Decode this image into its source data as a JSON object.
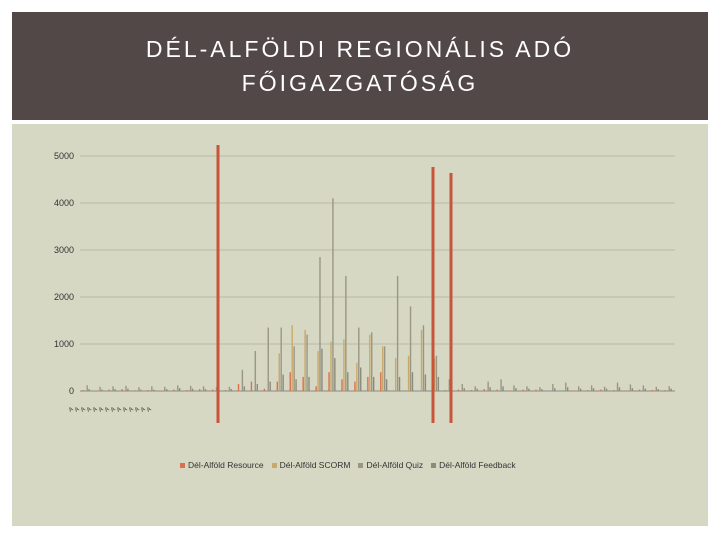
{
  "header": {
    "title_line1": "DÉL-ALFÖLDI REGIONÁLIS ADÓ",
    "title_line2": "FŐIGAZGATÓSÁG"
  },
  "colors": {
    "title_bg": "#524848",
    "panel_bg": "#d6d8c4",
    "marker": "#c8553a",
    "resource": "#d9714f",
    "scorm": "#c9a96a",
    "quiz": "#9a9685",
    "feedback": "#8c8a7a"
  },
  "chart_data": {
    "type": "bar",
    "title": "",
    "xlabel": "",
    "ylabel": "",
    "ylim": [
      0,
      5000
    ],
    "yticks": [
      0,
      1000,
      2000,
      3000,
      4000,
      5000
    ],
    "grid": true,
    "legend_position": "bottom",
    "legend": [
      "Dél-Alföld Resource",
      "Dél-Alföld SCORM",
      "Dél-Alföld Quiz",
      "Dél-Alföld Feedback"
    ],
    "series": [
      {
        "name": "Dél-Alföld Resource",
        "values": [
          20,
          10,
          30,
          40,
          15,
          20,
          10,
          30,
          20,
          40,
          30,
          20,
          150,
          200,
          50,
          200,
          400,
          300,
          100,
          400,
          250,
          200,
          300,
          400,
          0,
          0,
          0,
          0,
          20,
          30,
          20,
          40,
          30,
          10,
          30,
          30,
          0,
          0,
          10,
          20,
          30,
          20,
          10,
          30,
          20,
          20
        ]
      },
      {
        "name": "Dél-Alföld SCORM",
        "values": [
          0,
          0,
          0,
          0,
          0,
          0,
          0,
          0,
          0,
          0,
          0,
          0,
          0,
          0,
          0,
          800,
          1400,
          1300,
          850,
          1050,
          1100,
          600,
          1200,
          950,
          700,
          750,
          1300,
          700,
          0,
          0,
          0,
          0,
          0,
          0,
          0,
          0,
          0,
          0,
          0,
          0,
          0,
          0,
          0,
          0,
          0,
          0
        ]
      },
      {
        "name": "Dél-Alföld Quiz",
        "values": [
          120,
          90,
          100,
          110,
          80,
          100,
          90,
          120,
          110,
          100,
          80,
          90,
          450,
          850,
          1350,
          1350,
          950,
          1200,
          2850,
          4100,
          2450,
          1350,
          1250,
          950,
          2450,
          1800,
          1400,
          750,
          250,
          150,
          100,
          200,
          250,
          120,
          100,
          80,
          150,
          180,
          100,
          120,
          90,
          180,
          140,
          120,
          90,
          100
        ]
      },
      {
        "name": "Dél-Alföld Feedback",
        "values": [
          40,
          30,
          40,
          50,
          30,
          30,
          40,
          60,
          50,
          40,
          30,
          40,
          100,
          150,
          200,
          350,
          250,
          300,
          900,
          700,
          400,
          500,
          300,
          250,
          300,
          400,
          350,
          300,
          80,
          60,
          50,
          80,
          100,
          60,
          50,
          40,
          60,
          80,
          50,
          60,
          50,
          80,
          60,
          50,
          40,
          50
        ]
      }
    ],
    "x_tick_labels": [
      "A",
      "A",
      "A",
      "A",
      "A",
      "A",
      "A",
      "A",
      "A",
      "A",
      "A",
      "A",
      "A",
      "A"
    ]
  }
}
